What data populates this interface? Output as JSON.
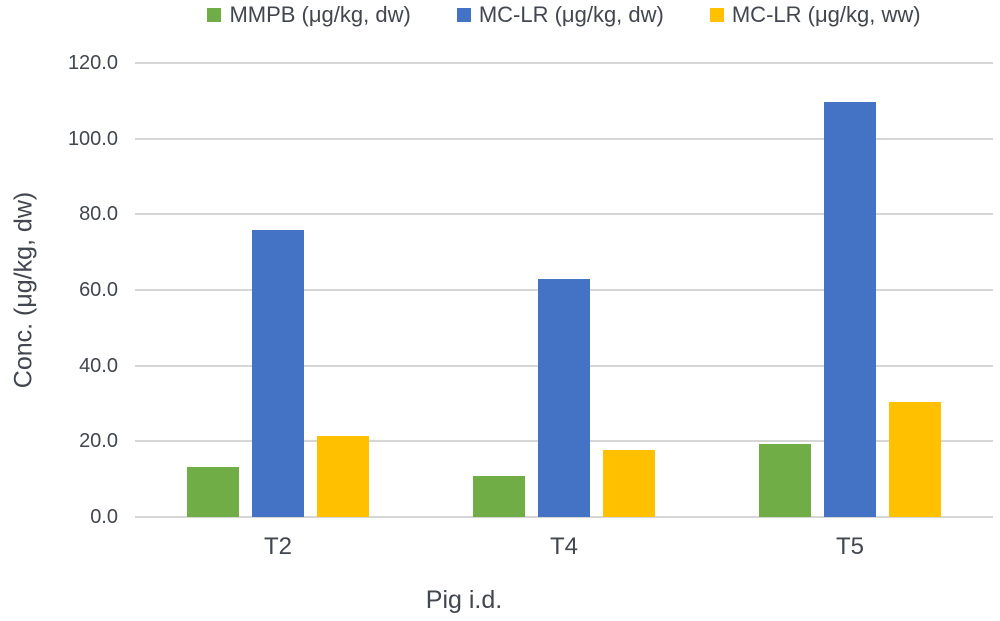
{
  "figure": {
    "background": "#ffffff",
    "text_color": "#42464e"
  },
  "chart_data": {
    "type": "bar",
    "title": "",
    "xlabel": "Pig i.d.",
    "ylabel": "Conc. (μg/kg, dw)",
    "categories": [
      "T2",
      "T4",
      "T5"
    ],
    "series": [
      {
        "name": "MMPB (μg/kg, dw)",
        "color": "#70AD47",
        "values": [
          13.3,
          10.8,
          19.2
        ]
      },
      {
        "name": "MC-LR (μg/kg, dw)",
        "color": "#4472C4",
        "values": [
          75.9,
          63.0,
          109.7
        ]
      },
      {
        "name": "MC-LR (μg/kg, ww)",
        "color": "#FFC000",
        "values": [
          21.4,
          17.8,
          30.5
        ]
      }
    ],
    "ylim": [
      0,
      120
    ],
    "ytick_step": 20,
    "ytick_labels": [
      "0.0",
      "20.0",
      "40.0",
      "60.0",
      "80.0",
      "100.0",
      "120.0"
    ],
    "grid": true,
    "gridline_color": "#d6d6d6",
    "legend_position": "top"
  }
}
